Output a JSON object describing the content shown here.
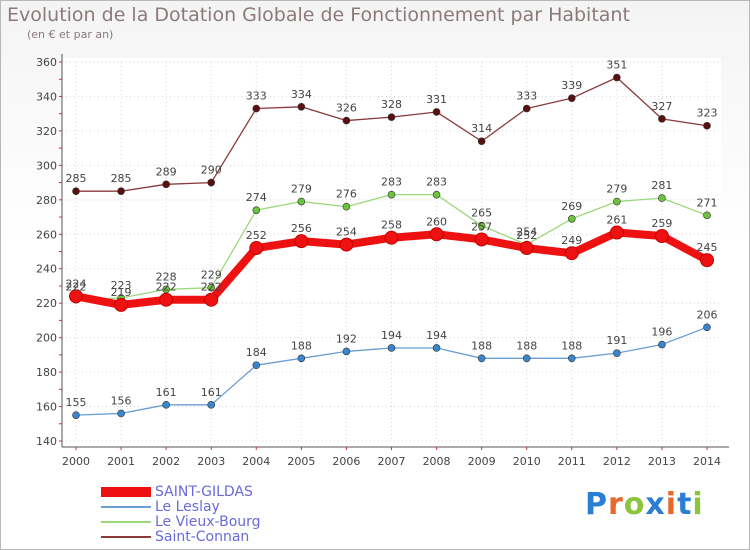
{
  "title": "Evolution de la Dotation Globale de Fonctionnement par Habitant",
  "subtitle": "(en € et par an)",
  "logo": {
    "text": "Proxiti",
    "letters": [
      "P",
      "r",
      "o",
      "x",
      "i",
      "t",
      "i"
    ],
    "colors": [
      "#2a7fd4",
      "#e8682a",
      "#8cc43c",
      "#2a7fd4",
      "#e8682a",
      "#2a7fd4",
      "#8cc43c"
    ]
  },
  "chart_data": {
    "type": "line",
    "title": "Evolution de la Dotation Globale de Fonctionnement par Habitant",
    "subtitle": "(en € et par an)",
    "x": [
      "2000",
      "2001",
      "2002",
      "2003",
      "2004",
      "2005",
      "2006",
      "2007",
      "2008",
      "2009",
      "2010",
      "2011",
      "2012",
      "2013",
      "2014"
    ],
    "ylim": [
      140,
      360
    ],
    "yticks": [
      140,
      160,
      180,
      200,
      220,
      240,
      260,
      280,
      300,
      320,
      340,
      360
    ],
    "grid": true,
    "legend_position": "bottom-left",
    "series": [
      {
        "name": "SAINT-GILDAS",
        "color": "#ee1111",
        "values": [
          224,
          219,
          222,
          222,
          252,
          256,
          254,
          258,
          260,
          257,
          252,
          249,
          261,
          259,
          245
        ],
        "labels": [
          "224",
          "219",
          "222",
          "222",
          "252",
          "256",
          "254",
          "258",
          "260",
          "257",
          "252",
          "249",
          "261",
          "259",
          "245"
        ]
      },
      {
        "name": "Le Leslay",
        "color": "#6a9ed4",
        "marker": "#3a86cc",
        "values": [
          155,
          156,
          161,
          161,
          184,
          188,
          192,
          194,
          194,
          188,
          188,
          188,
          191,
          196,
          206
        ],
        "labels": [
          "155",
          "156",
          "161",
          "161",
          "184",
          "188",
          "192",
          "194",
          "194",
          "188",
          "188",
          "188",
          "191",
          "196",
          "206"
        ]
      },
      {
        "name": "Le Vieux-Bourg",
        "color": "#9ad87a",
        "marker": "#6cc43c",
        "values": [
          222,
          223,
          228,
          229,
          274,
          279,
          276,
          283,
          283,
          265,
          254,
          269,
          279,
          281,
          271
        ],
        "labels": [
          "222",
          "223",
          "228",
          "229",
          "274",
          "279",
          "276",
          "283",
          "283",
          "265",
          "254",
          "269",
          "279",
          "281",
          "271"
        ]
      },
      {
        "name": "Saint-Connan",
        "color": "#8a3a3a",
        "marker": "#5a1010",
        "values": [
          285,
          285,
          289,
          290,
          333,
          334,
          326,
          328,
          331,
          314,
          333,
          339,
          351,
          327,
          323
        ],
        "labels": [
          "285",
          "285",
          "289",
          "290",
          "333",
          "334",
          "326",
          "328",
          "331",
          "314",
          "333",
          "339",
          "351",
          "327",
          "323"
        ]
      }
    ]
  }
}
